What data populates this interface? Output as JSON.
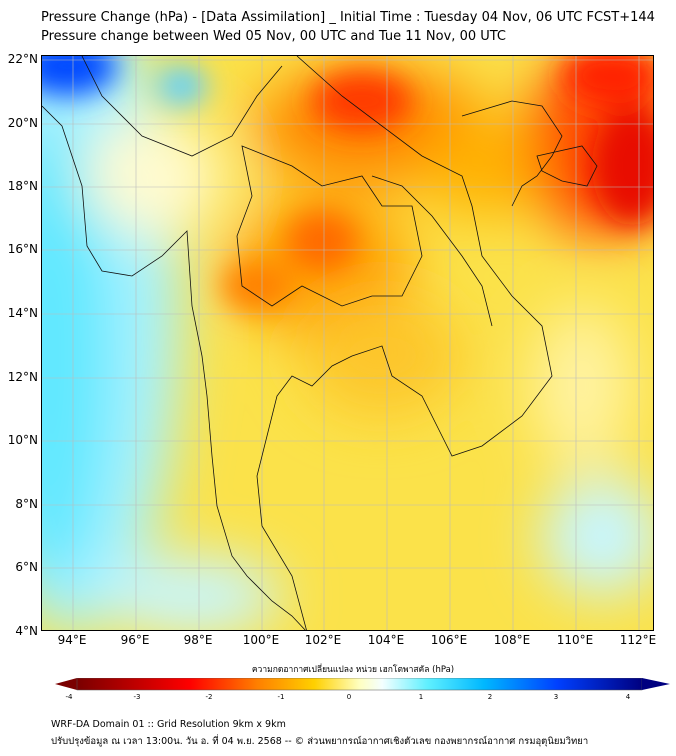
{
  "title": {
    "line1": "Pressure Change (hPa) - [Data Assimilation] _ Initial Time : Tuesday 04 Nov, 06 UTC FCST+144",
    "line2": "Pressure change between Wed 05 Nov, 00 UTC and Tue 11 Nov, 00 UTC"
  },
  "map": {
    "lat_labels": [
      "22°N",
      "20°N",
      "18°N",
      "16°N",
      "14°N",
      "12°N",
      "10°N",
      "8°N",
      "6°N",
      "4°N"
    ],
    "lon_labels": [
      "94°E",
      "96°E",
      "98°E",
      "100°E",
      "102°E",
      "104°E",
      "106°E",
      "108°E",
      "110°E",
      "112°E"
    ]
  },
  "colorbar": {
    "label": "ความกดอากาศเปลี่ยนแปลง หน่วย เฮกโตพาสคัล (hPa)",
    "ticks": [
      "-4",
      "-3",
      "-2",
      "-1",
      "0",
      "1",
      "2",
      "3",
      "4"
    ],
    "min": -4,
    "max": 4,
    "colors": [
      "#7a0000",
      "#e00000",
      "#ff6000",
      "#ffc000",
      "#ffff80",
      "#ffffff",
      "#80ffff",
      "#00c0ff",
      "#0040ff",
      "#000080"
    ]
  },
  "footer": {
    "line1": "WRF-DA Domain 01 :: Grid Resolution 9km x 9km",
    "line2": "ปรับปรุงข้อมูล ณ เวลา 13:00น. วัน อ. ที่ 04 พ.ย. 2568 -- © ส่วนพยากรณ์อากาศเชิงตัวเลข กองพยากรณ์อากาศ กรมอุตุนิยมวิทยา"
  }
}
